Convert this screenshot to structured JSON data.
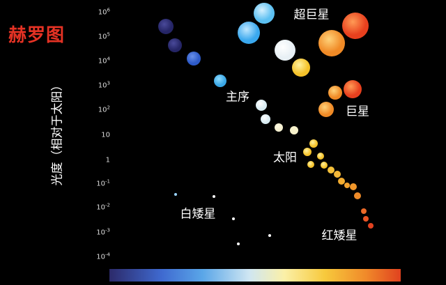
{
  "title": "赫罗图",
  "y_axis_label": "光度（相对于太阳）",
  "y_ticks": [
    {
      "base": "10",
      "exp": "6"
    },
    {
      "base": "10",
      "exp": "5"
    },
    {
      "base": "10",
      "exp": "4"
    },
    {
      "base": "10",
      "exp": "3"
    },
    {
      "base": "10",
      "exp": "2"
    },
    {
      "base": "10",
      "exp": ""
    },
    {
      "base": "1",
      "exp": ""
    },
    {
      "base": "10",
      "exp": "-1"
    },
    {
      "base": "10",
      "exp": "-2"
    },
    {
      "base": "10",
      "exp": "-3"
    },
    {
      "base": "10",
      "exp": "-4"
    }
  ],
  "region_labels": {
    "supergiants": "超巨星",
    "giants": "巨星",
    "main_sequence": "主序",
    "sun": "太阳",
    "white_dwarfs": "白矮星",
    "red_dwarfs": "红矮星"
  },
  "colors": {
    "title": "#e53224",
    "colorbar_left": "#2c2a6a",
    "colorbar_right": "#e0421f"
  }
}
